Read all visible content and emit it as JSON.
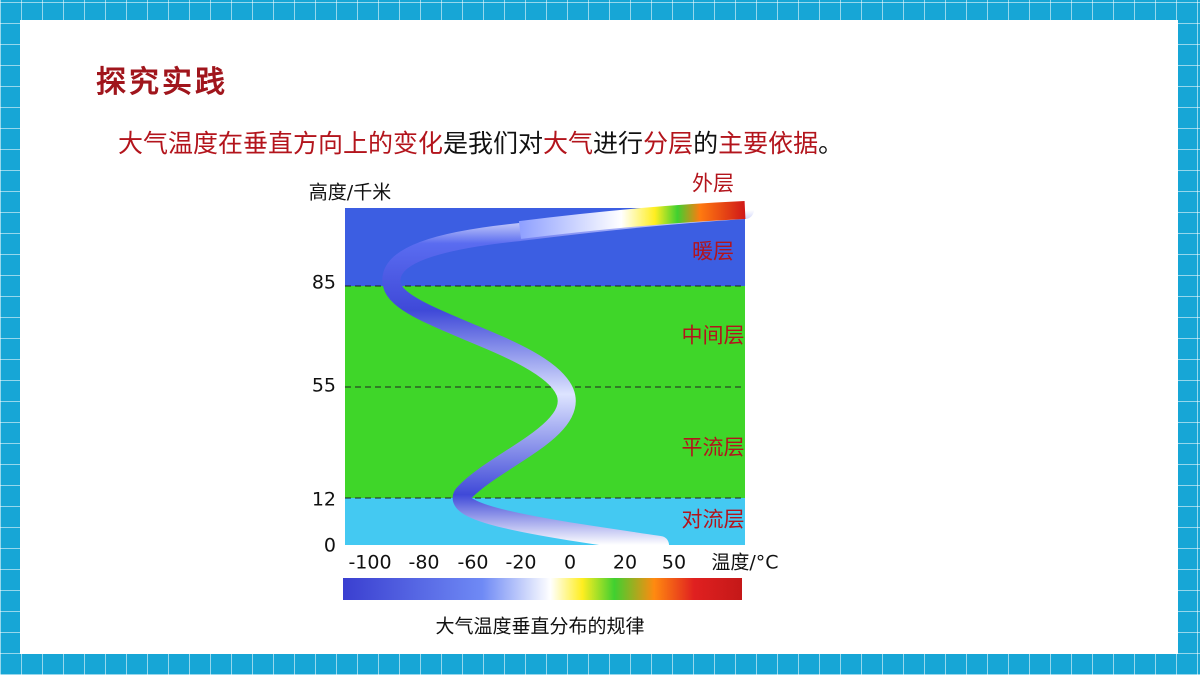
{
  "header": {
    "title": "探究实践"
  },
  "sentence": [
    {
      "text": "大气温度在垂直方向上的变化",
      "highlight": true
    },
    {
      "text": "是我们对",
      "highlight": false
    },
    {
      "text": "大气",
      "highlight": true
    },
    {
      "text": "进行",
      "highlight": false
    },
    {
      "text": "分层",
      "highlight": true
    },
    {
      "text": "的",
      "highlight": false
    },
    {
      "text": "主要依据",
      "highlight": true
    },
    {
      "text": "。",
      "highlight": false
    }
  ],
  "diagram": {
    "y_axis_label": "高度/千米",
    "y_labels": [
      "85",
      "55",
      "12",
      "0"
    ],
    "x_labels": [
      "-100",
      "-80",
      "-60",
      "-20",
      "0",
      "20",
      "50"
    ],
    "x_axis_label": "温度/°C",
    "layers": [
      "外层",
      "暖层",
      "中间层",
      "平流层",
      "对流层"
    ],
    "caption": "大气温度垂直分布的规律"
  }
}
